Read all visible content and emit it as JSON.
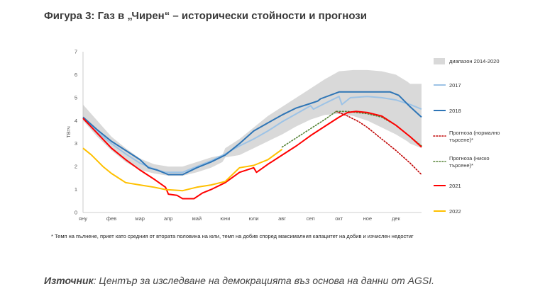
{
  "title": "Фигура 3: Газ в „Чирен“ – исторически стойности и прогнози",
  "footnote": "* Темп на пълнене, приет като средния от втората половина на юли, темп на добив според максималния капацитет на добив и изчислен недостиг",
  "source": {
    "label": "Източник",
    "text": ": Център за изследване на демокрацията въз основа на данни от AGSI."
  },
  "chart_data": {
    "type": "line",
    "title": "",
    "xlabel": "",
    "ylabel": "ТВтч",
    "ylim": [
      0,
      7
    ],
    "yticks": [
      0,
      1,
      2,
      3,
      4,
      5,
      6,
      7
    ],
    "xlim": [
      1,
      12.9
    ],
    "xticks": [
      {
        "label": "яну",
        "x": 1
      },
      {
        "label": "фев",
        "x": 2
      },
      {
        "label": "мар",
        "x": 3
      },
      {
        "label": "апр",
        "x": 4
      },
      {
        "label": "май",
        "x": 5
      },
      {
        "label": "юни",
        "x": 6
      },
      {
        "label": "юли",
        "x": 7
      },
      {
        "label": "авг",
        "x": 8
      },
      {
        "label": "сеп",
        "x": 9
      },
      {
        "label": "окт",
        "x": 10
      },
      {
        "label": "ное",
        "x": 11
      },
      {
        "label": "дек",
        "x": 12
      }
    ],
    "grid": false,
    "legend_position": "right",
    "band": {
      "name": "диапазон 2014-2020",
      "color": "#d9d9d9",
      "x": [
        1,
        1.5,
        2,
        2.5,
        3,
        3.5,
        4,
        4.5,
        5,
        5.5,
        5.9,
        6,
        6.5,
        7,
        7.5,
        8,
        8.5,
        9,
        9.5,
        10,
        10.5,
        11,
        11.5,
        12,
        12.4,
        12.5,
        12.9
      ],
      "upper": [
        4.7,
        4.0,
        3.3,
        2.8,
        2.35,
        2.1,
        2.0,
        2.0,
        2.2,
        2.4,
        2.5,
        2.8,
        3.2,
        3.7,
        4.2,
        4.6,
        5.0,
        5.4,
        5.8,
        6.15,
        6.2,
        6.2,
        6.15,
        6.0,
        5.7,
        5.6,
        5.6
      ],
      "lower": [
        4.0,
        3.3,
        2.7,
        2.2,
        1.85,
        1.7,
        1.6,
        1.6,
        1.75,
        1.95,
        2.2,
        2.4,
        2.5,
        2.8,
        3.1,
        3.4,
        3.75,
        4.05,
        4.25,
        4.3,
        4.2,
        4.0,
        3.7,
        3.4,
        3.1,
        3.0,
        2.8
      ]
    },
    "series": [
      {
        "name": "2017",
        "color": "#9dc3e6",
        "dash": "solid",
        "x": [
          1,
          1.5,
          2,
          2.5,
          3,
          3.5,
          3.9,
          4.5,
          5,
          5.5,
          6,
          6.5,
          7,
          7.5,
          8,
          8.5,
          9,
          9.1,
          9.5,
          10,
          10.1,
          10.4,
          11,
          11.5,
          12,
          12.5,
          12.9
        ],
        "y": [
          4.1,
          3.5,
          3.0,
          2.55,
          2.15,
          1.9,
          1.75,
          1.75,
          2.0,
          2.25,
          2.55,
          2.9,
          3.2,
          3.55,
          3.95,
          4.3,
          4.65,
          4.5,
          4.75,
          5.05,
          4.7,
          5.0,
          5.05,
          5.0,
          4.9,
          4.7,
          4.5
        ]
      },
      {
        "name": "2018",
        "color": "#2e75b6",
        "dash": "solid",
        "x": [
          1,
          1.5,
          2,
          2.5,
          3,
          3.3,
          3.6,
          4,
          4.5,
          5,
          5.5,
          6,
          6.5,
          7,
          7.5,
          8,
          8.5,
          9,
          9.25,
          9.35,
          10,
          10.5,
          11,
          11.5,
          11.8,
          12.1,
          12.5,
          12.9
        ],
        "y": [
          4.15,
          3.6,
          3.1,
          2.7,
          2.3,
          1.95,
          1.85,
          1.65,
          1.65,
          1.95,
          2.2,
          2.5,
          3.0,
          3.55,
          3.9,
          4.25,
          4.55,
          4.75,
          4.85,
          4.95,
          5.25,
          5.25,
          5.25,
          5.25,
          5.25,
          5.1,
          4.6,
          4.15
        ]
      },
      {
        "name": "Прогноза (нормално търсене)*",
        "color": "#c00000",
        "dash": "dotted",
        "x": [
          9.9,
          10.3,
          10.7,
          11,
          11.5,
          12,
          12.5,
          12.9
        ],
        "y": [
          4.4,
          4.2,
          3.95,
          3.7,
          3.2,
          2.7,
          2.15,
          1.65
        ]
      },
      {
        "name": "Прогноза (ниско търсене)*",
        "color": "#548235",
        "dash": "dotted",
        "x": [
          8,
          8.5,
          9,
          9.5,
          9.9,
          10.3,
          11,
          11.5,
          12,
          12.5,
          12.9
        ],
        "y": [
          2.85,
          3.25,
          3.65,
          4.05,
          4.4,
          4.4,
          4.3,
          4.15,
          3.8,
          3.3,
          2.9
        ]
      },
      {
        "name": "2021",
        "color": "#ff0000",
        "dash": "solid",
        "x": [
          1,
          1.5,
          2,
          2.5,
          3,
          3.5,
          3.9,
          4,
          4.3,
          4.5,
          4.9,
          5.2,
          5.5,
          6,
          6.5,
          7,
          7.1,
          7.5,
          8,
          8.5,
          9,
          9.5,
          10,
          10.3,
          10.6,
          11,
          11.5,
          12,
          12.5,
          12.9
        ],
        "y": [
          4.1,
          3.45,
          2.8,
          2.3,
          1.85,
          1.45,
          1.1,
          0.8,
          0.75,
          0.6,
          0.6,
          0.85,
          1.0,
          1.3,
          1.75,
          1.95,
          1.75,
          2.1,
          2.5,
          2.9,
          3.35,
          3.75,
          4.15,
          4.35,
          4.4,
          4.35,
          4.2,
          3.8,
          3.3,
          2.85
        ]
      },
      {
        "name": "2022",
        "color": "#ffc000",
        "dash": "solid",
        "x": [
          1,
          1.3,
          1.7,
          2,
          2.5,
          3,
          3.5,
          3.9,
          4.5,
          5,
          5.5,
          6,
          6.5,
          7,
          7.5,
          8
        ],
        "y": [
          2.8,
          2.5,
          2.0,
          1.7,
          1.3,
          1.2,
          1.1,
          1.0,
          0.95,
          1.1,
          1.2,
          1.35,
          1.95,
          2.05,
          2.3,
          2.75
        ]
      }
    ]
  }
}
